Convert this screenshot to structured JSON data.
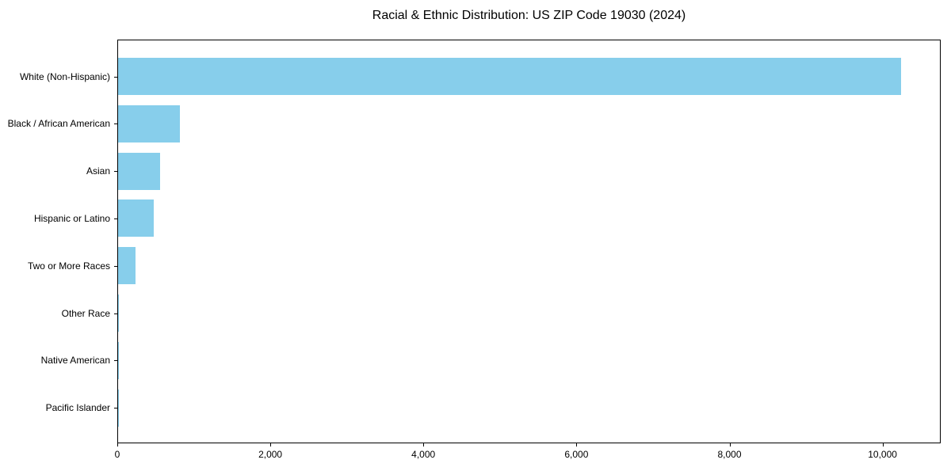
{
  "title": "Racial & Ethnic Distribution: US ZIP Code 19030 (2024)",
  "colors": {
    "bar": "#87CEEB",
    "spine": "#000000",
    "text": "#000000",
    "background": "#FFFFFF"
  },
  "chart_data": {
    "type": "bar",
    "orientation": "horizontal",
    "title": "Racial & Ethnic Distribution: US ZIP Code 19030 (2024)",
    "categories": [
      "White (Non-Hispanic)",
      "Black / African American",
      "Asian",
      "Hispanic or Latino",
      "Two or More Races",
      "Other Race",
      "Native American",
      "Pacific Islander"
    ],
    "values": [
      10230,
      805,
      545,
      465,
      232,
      15,
      5,
      2
    ],
    "xlabel": "",
    "ylabel": "",
    "xlim": [
      0,
      10760
    ],
    "xticks": [
      0,
      2000,
      4000,
      6000,
      8000,
      10000
    ],
    "xtick_labels": [
      "0",
      "2,000",
      "4,000",
      "6,000",
      "8,000",
      "10,000"
    ],
    "bar_color": "#87CEEB",
    "grid": false,
    "legend": null
  }
}
